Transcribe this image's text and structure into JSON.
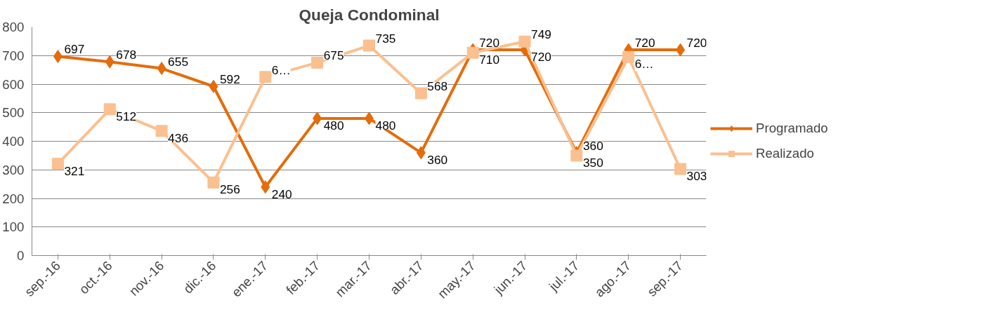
{
  "chart_data": {
    "type": "line",
    "title": "Queja Condominal",
    "categories": [
      "sep.-16",
      "oct.-16",
      "nov.-16",
      "dic.-16",
      "ene.-17",
      "feb.-17",
      "mar.-17",
      "abr.-17",
      "may.-17",
      "jun.-17",
      "jul.-17",
      "ago.-17",
      "sep.-17"
    ],
    "series": [
      {
        "name": "Programado",
        "color": "#e46c0a",
        "marker": "diamond",
        "values": [
          697,
          678,
          655,
          592,
          240,
          480,
          480,
          360,
          720,
          720,
          360,
          720,
          720
        ],
        "value_labels": [
          "697",
          "678",
          "655",
          "592",
          "240",
          "480",
          "480",
          "360",
          "720",
          "720",
          "360",
          "720",
          "720"
        ]
      },
      {
        "name": "Realizado",
        "color": "#fac090",
        "marker": "square",
        "values": [
          321,
          512,
          436,
          256,
          625,
          675,
          735,
          568,
          710,
          749,
          350,
          695,
          303
        ],
        "value_labels": [
          "321",
          "512",
          "436",
          "256",
          "6…",
          "675",
          "735",
          "568",
          "710",
          "749",
          "350",
          "6…",
          "303"
        ]
      }
    ],
    "ylim": [
      0,
      800
    ],
    "yticks": [
      0,
      100,
      200,
      300,
      400,
      500,
      600,
      700,
      800
    ],
    "grid": "y",
    "legend": "right",
    "line_style": "solid"
  }
}
